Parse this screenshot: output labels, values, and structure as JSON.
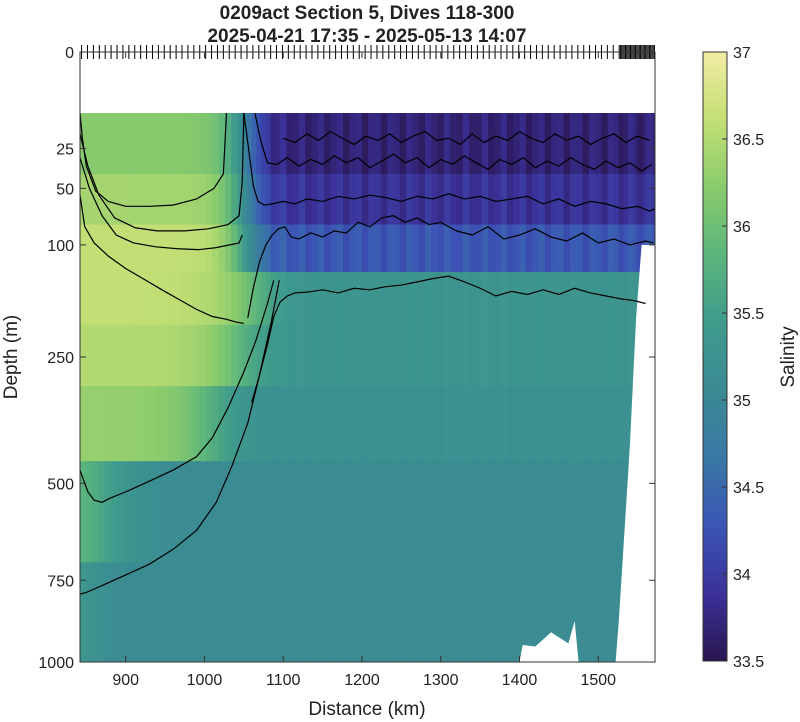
{
  "chart_data": {
    "type": "heatmap",
    "title": "0209act Section 5, Dives 118-300",
    "subtitle": "2025-04-21 17:35 - 2025-05-13 14:07",
    "xlabel": "Distance (km)",
    "ylabel": "Depth (m)",
    "colorbar_label": "Salinity",
    "xlim": [
      842,
      1572
    ],
    "ylim": [
      0,
      1000
    ],
    "y_scale": "sqrt",
    "y_reversed": true,
    "x_ticks": [
      900,
      1000,
      1100,
      1200,
      1300,
      1400,
      1500
    ],
    "x_tick_labels": [
      "900",
      "1000",
      "1100",
      "1200",
      "1300",
      "1400",
      "1500"
    ],
    "y_ticks": [
      0,
      25,
      50,
      100,
      250,
      500,
      750,
      1000
    ],
    "y_tick_labels": [
      "0",
      "25",
      "50",
      "100",
      "250",
      "500",
      "750",
      "1000"
    ],
    "colorbar_range": [
      33.5,
      37
    ],
    "colorbar_ticks": [
      33.5,
      34,
      34.5,
      35,
      35.5,
      36,
      36.5,
      37
    ],
    "colorbar_tick_labels": [
      "33.5",
      "34",
      "34.5",
      "35",
      "35.5",
      "36",
      "36.5",
      "37"
    ],
    "colormap": [
      "#2a1650",
      "#3b3199",
      "#3b55b6",
      "#3a78a6",
      "#3a8a93",
      "#3f9b8c",
      "#5bb57c",
      "#8acb6c",
      "#c4df74",
      "#f2eca4"
    ],
    "data_top_depth": 10,
    "profile_distances": [
      842,
      850,
      858,
      866,
      874,
      882,
      890,
      898,
      906,
      914,
      922,
      930,
      938,
      946,
      954,
      962,
      970,
      978,
      986,
      994,
      1002,
      1010,
      1018,
      1026,
      1034,
      1042,
      1048,
      1054,
      1060,
      1066,
      1072,
      1078,
      1084,
      1090,
      1096,
      1104,
      1112,
      1120,
      1128,
      1136,
      1144,
      1152,
      1160,
      1168,
      1176,
      1184,
      1192,
      1200,
      1208,
      1216,
      1224,
      1232,
      1240,
      1248,
      1256,
      1264,
      1272,
      1280,
      1288,
      1296,
      1304,
      1312,
      1320,
      1328,
      1336,
      1344,
      1352,
      1360,
      1368,
      1376,
      1384,
      1392,
      1400,
      1408,
      1416,
      1424,
      1432,
      1440,
      1448,
      1456,
      1464,
      1472,
      1480,
      1488,
      1496,
      1504,
      1512,
      1520,
      1526,
      1532,
      1538,
      1544,
      1548,
      1552,
      1556,
      1560,
      1564,
      1568,
      1572
    ],
    "layer_upper_bounds": [
      10,
      40,
      80,
      130,
      200,
      300,
      450,
      700,
      1000
    ],
    "sal_warm": [
      36.2,
      36.4,
      36.6,
      36.6,
      36.5,
      36.3,
      36.1,
      35.9,
      35.6
    ],
    "sal_ridge": [
      35.0,
      35.3,
      35.5,
      35.3,
      35.3,
      35.2,
      35.1,
      35.1,
      35.0
    ],
    "sal_east": [
      33.7,
      33.9,
      34.3,
      35.0,
      35.2,
      35.15,
      35.1,
      35.05,
      35.0
    ],
    "bottom_depth": {
      "x": [
        842,
        1400,
        1404,
        1420,
        1440,
        1462,
        1470,
        1475,
        1500,
        1522,
        1526,
        1540,
        1548,
        1555,
        1572
      ],
      "depth": [
        1000,
        1000,
        945,
        950,
        905,
        940,
        870,
        1000,
        1000,
        1000,
        870,
        420,
        190,
        100,
        100
      ]
    },
    "contours": [
      {
        "level": 36.5,
        "x": [
          842,
          845,
          850,
          862,
          878,
          900,
          930,
          960,
          990,
          1012,
          1024,
          1028
        ],
        "depth": [
          10,
          20,
          35,
          52,
          60,
          64,
          64,
          63,
          58,
          50,
          40,
          10
        ]
      },
      {
        "level": 36.4,
        "x": [
          842,
          852,
          866,
          886,
          912,
          940,
          975,
          1005,
          1030,
          1044,
          1048,
          1050
        ],
        "depth": [
          18,
          35,
          55,
          74,
          83,
          86,
          86,
          84,
          80,
          72,
          45,
          10
        ]
      },
      {
        "level": 36.3,
        "x": [
          842,
          854,
          870,
          888,
          910,
          938,
          966,
          992,
          1014,
          1032,
          1044,
          1048
        ],
        "depth": [
          30,
          50,
          72,
          90,
          98,
          102,
          104,
          105,
          103,
          100,
          98,
          90
        ]
      },
      {
        "level": 36.2,
        "x": [
          842,
          848,
          860,
          878,
          900,
          922,
          946,
          970,
          990,
          1010,
          1028,
          1040,
          1050
        ],
        "depth": [
          55,
          82,
          98,
          112,
          126,
          138,
          152,
          166,
          178,
          188,
          192,
          196,
          198
        ]
      },
      {
        "level": 36.0,
        "x": [
          842,
          846,
          852,
          860,
          870,
          880,
          900,
          930,
          960,
          990,
          1010,
          1030,
          1050,
          1065,
          1080,
          1088
        ],
        "depth": [
          470,
          490,
          520,
          540,
          545,
          535,
          520,
          495,
          470,
          440,
          400,
          340,
          275,
          225,
          170,
          140
        ]
      },
      {
        "level": 35.5,
        "x": [
          842,
          850,
          860,
          875,
          900,
          930,
          960,
          990,
          1015,
          1035,
          1055,
          1070,
          1085,
          1095
        ],
        "depth": [
          790,
          785,
          775,
          760,
          735,
          705,
          665,
          615,
          545,
          460,
          370,
          280,
          195,
          140
        ]
      },
      {
        "level": 35.3,
        "x": [
          1060,
          1070,
          1080,
          1088,
          1096,
          1105,
          1115,
          1130,
          1150,
          1170,
          1190,
          1210,
          1230,
          1250,
          1270,
          1290,
          1310,
          1330,
          1350,
          1370,
          1390,
          1410,
          1430,
          1450,
          1470,
          1490,
          1510,
          1530,
          1545,
          1560
        ],
        "depth": [
          330,
          280,
          230,
          188,
          168,
          160,
          156,
          155,
          152,
          156,
          150,
          152,
          148,
          146,
          142,
          138,
          135,
          142,
          150,
          160,
          154,
          158,
          152,
          158,
          150,
          156,
          160,
          164,
          166,
          170
        ]
      },
      {
        "level": 35.0,
        "x": [
          1055,
          1062,
          1070,
          1078,
          1086,
          1094,
          1102,
          1110,
          1120,
          1135,
          1150,
          1165,
          1180,
          1195,
          1210,
          1225,
          1240,
          1255,
          1270,
          1285,
          1300,
          1320,
          1340,
          1360,
          1380,
          1400,
          1420,
          1440,
          1460,
          1480,
          1500,
          1520,
          1540,
          1560,
          1570
        ],
        "depth": [
          190,
          150,
          118,
          100,
          90,
          84,
          82,
          92,
          94,
          88,
          92,
          86,
          88,
          78,
          82,
          74,
          72,
          78,
          74,
          80,
          78,
          86,
          90,
          82,
          94,
          90,
          84,
          92,
          96,
          88,
          98,
          94,
          100,
          96,
          98
        ]
      },
      {
        "level": 34.5,
        "x": [
          1050,
          1056,
          1062,
          1068,
          1076,
          1086,
          1100,
          1115,
          1130,
          1150,
          1170,
          1190,
          1210,
          1230,
          1250,
          1270,
          1290,
          1310,
          1330,
          1350,
          1370,
          1390,
          1410,
          1430,
          1450,
          1470,
          1490,
          1510,
          1530,
          1550,
          1565,
          1572
        ],
        "depth": [
          10,
          25,
          48,
          60,
          63,
          62,
          60,
          62,
          58,
          60,
          56,
          58,
          55,
          57,
          60,
          56,
          58,
          54,
          58,
          56,
          60,
          58,
          56,
          62,
          58,
          64,
          60,
          62,
          66,
          64,
          68,
          66
        ]
      },
      {
        "level": 34.0,
        "x": [
          1064,
          1072,
          1080,
          1092,
          1105,
          1120,
          1135,
          1150,
          1165,
          1180,
          1195,
          1210,
          1225,
          1240,
          1255,
          1270,
          1285,
          1300,
          1315,
          1330,
          1345,
          1360,
          1375,
          1390,
          1405,
          1420,
          1435,
          1450,
          1465,
          1480,
          1495,
          1510,
          1525,
          1540,
          1555,
          1568
        ],
        "depth": [
          10,
          22,
          33,
          34,
          30,
          35,
          31,
          34,
          29,
          33,
          30,
          36,
          32,
          28,
          33,
          30,
          36,
          31,
          34,
          29,
          33,
          37,
          31,
          34,
          30,
          36,
          32,
          35,
          30,
          34,
          37,
          32,
          36,
          33,
          38,
          34
        ]
      },
      {
        "level": 33.8,
        "x": [
          1100,
          1115,
          1130,
          1145,
          1160,
          1175,
          1190,
          1205,
          1220,
          1235,
          1250,
          1265,
          1280,
          1295,
          1310,
          1325,
          1340,
          1355,
          1370,
          1385,
          1400,
          1415,
          1430,
          1445,
          1460,
          1475,
          1490,
          1505,
          1520,
          1535,
          1550,
          1565
        ],
        "depth": [
          20,
          22,
          18,
          21,
          17,
          20,
          23,
          19,
          21,
          18,
          22,
          19,
          17,
          21,
          20,
          23,
          18,
          22,
          19,
          21,
          17,
          20,
          22,
          18,
          21,
          19,
          23,
          20,
          18,
          22,
          19,
          21
        ]
      }
    ],
    "dive_ticks": {
      "start": 844,
      "end": 1572,
      "spacing": 7.5,
      "dense_from": 1520,
      "dense_spacing": 1.6
    }
  }
}
